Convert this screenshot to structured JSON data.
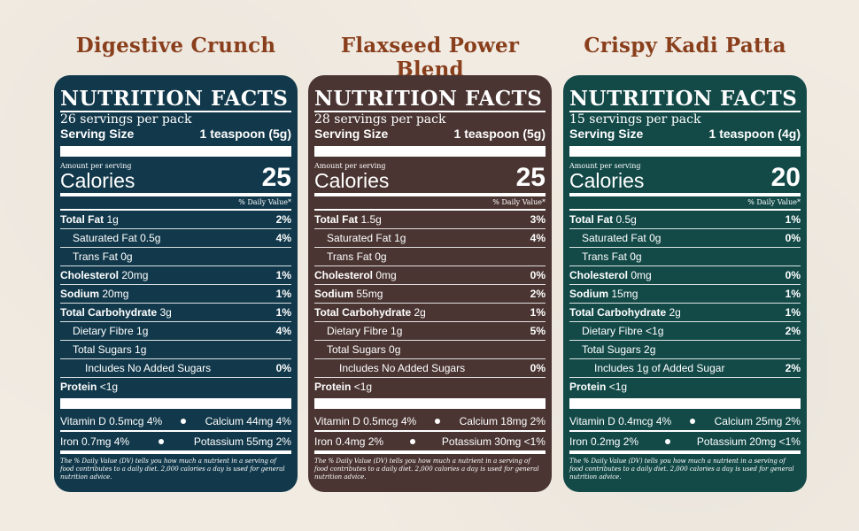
{
  "products": [
    {
      "name": "Digestive Crunch",
      "color": "#12394b",
      "facts_title": "NUTRITION FACTS",
      "servings": "26 servings per pack",
      "serving_size_label": "Serving Size",
      "serving_size_value": "1 teaspoon (5g)",
      "amount_per_serving": "Amount per serving",
      "calories_label": "Calories",
      "calories": "25",
      "dv_header": "% Daily Value*",
      "rows": [
        {
          "label": "Total Fat",
          "amount": "1g",
          "dv": "2%"
        },
        {
          "label": "Saturated Fat",
          "amount": "0.5g",
          "dv": "4%"
        },
        {
          "label": "Trans Fat",
          "amount": "0g",
          "dv": ""
        },
        {
          "label": "Cholesterol",
          "amount": "20mg",
          "dv": "1%"
        },
        {
          "label": "Sodium",
          "amount": "20mg",
          "dv": "1%"
        },
        {
          "label": "Total Carbohydrate",
          "amount": "3g",
          "dv": "1%"
        },
        {
          "label": "Dietary Fibre",
          "amount": "1g",
          "dv": "4%"
        },
        {
          "label": "Total Sugars",
          "amount": "1g",
          "dv": ""
        },
        {
          "label": "Includes No Added Sugars",
          "amount": "",
          "dv": "0%"
        },
        {
          "label": "Protein",
          "amount": "<1g",
          "dv": ""
        }
      ],
      "vitamin_d": "Vitamin D 0.5mcg 4%",
      "calcium": "Calcium 44mg 4%",
      "iron": "Iron 0.7mg 4%",
      "potassium": "Potassium 55mg 2%",
      "footnote": "The % Daily Value (DV) tells you how much a nutrient in a serving of food contributes to a daily diet. 2,000 calories a day is used for general nutrition advice."
    },
    {
      "name": "Flaxseed Power Blend",
      "color": "#4a3532",
      "facts_title": "NUTRITION FACTS",
      "servings": "28 servings per pack",
      "serving_size_label": "Serving Size",
      "serving_size_value": "1 teaspoon (5g)",
      "amount_per_serving": "Amount per serving",
      "calories_label": "Calories",
      "calories": "25",
      "dv_header": "% Daily Value*",
      "rows": [
        {
          "label": "Total Fat",
          "amount": "1.5g",
          "dv": "3%"
        },
        {
          "label": "Saturated Fat",
          "amount": "1g",
          "dv": "4%"
        },
        {
          "label": "Trans Fat",
          "amount": "0g",
          "dv": ""
        },
        {
          "label": "Cholesterol",
          "amount": "0mg",
          "dv": "0%"
        },
        {
          "label": "Sodium",
          "amount": "55mg",
          "dv": "2%"
        },
        {
          "label": "Total Carbohydrate",
          "amount": "2g",
          "dv": "1%"
        },
        {
          "label": "Dietary Fibre",
          "amount": "1g",
          "dv": "5%"
        },
        {
          "label": "Total Sugars",
          "amount": "0g",
          "dv": ""
        },
        {
          "label": "Includes No Added Sugars",
          "amount": "",
          "dv": "0%"
        },
        {
          "label": "Protein",
          "amount": "<1g",
          "dv": ""
        }
      ],
      "vitamin_d": "Vitamin D 0.5mcg 4%",
      "calcium": "Calcium 18mg 2%",
      "iron": "Iron 0.4mg 2%",
      "potassium": "Potassium 30mg <1%",
      "footnote": "The % Daily Value (DV) tells you how much a nutrient in a serving of food contributes to a daily diet. 2,000 calories a day is used for general nutrition advice."
    },
    {
      "name": "Crispy Kadi Patta",
      "color": "#134a48",
      "facts_title": "NUTRITION FACTS",
      "servings": "15 servings per pack",
      "serving_size_label": "Serving Size",
      "serving_size_value": "1 teaspoon (4g)",
      "amount_per_serving": "Amount per serving",
      "calories_label": "Calories",
      "calories": "20",
      "dv_header": "% Daily Value*",
      "rows": [
        {
          "label": "Total Fat",
          "amount": "0.5g",
          "dv": "1%"
        },
        {
          "label": "Saturated Fat",
          "amount": "0g",
          "dv": "0%"
        },
        {
          "label": "Trans Fat",
          "amount": "0g",
          "dv": ""
        },
        {
          "label": "Cholesterol",
          "amount": "0mg",
          "dv": "0%"
        },
        {
          "label": "Sodium",
          "amount": "15mg",
          "dv": "1%"
        },
        {
          "label": "Total Carbohydrate",
          "amount": "2g",
          "dv": "1%"
        },
        {
          "label": "Dietary Fibre",
          "amount": "<1g",
          "dv": "2%"
        },
        {
          "label": "Total Sugars",
          "amount": "2g",
          "dv": ""
        },
        {
          "label": "Includes 1g of Added Sugar",
          "amount": "",
          "dv": "2%"
        },
        {
          "label": "Protein",
          "amount": "<1g",
          "dv": ""
        }
      ],
      "vitamin_d": "Vitamin D 0.4mcg 4%",
      "calcium": "Calcium 25mg 2%",
      "iron": "Iron 0.2mg 2%",
      "potassium": "Potassium 20mg <1%",
      "footnote": "The % Daily Value (DV) tells you how much a nutrient in a serving of food contributes to a daily diet. 2,000 calories a day is used for general nutrition advice."
    }
  ]
}
